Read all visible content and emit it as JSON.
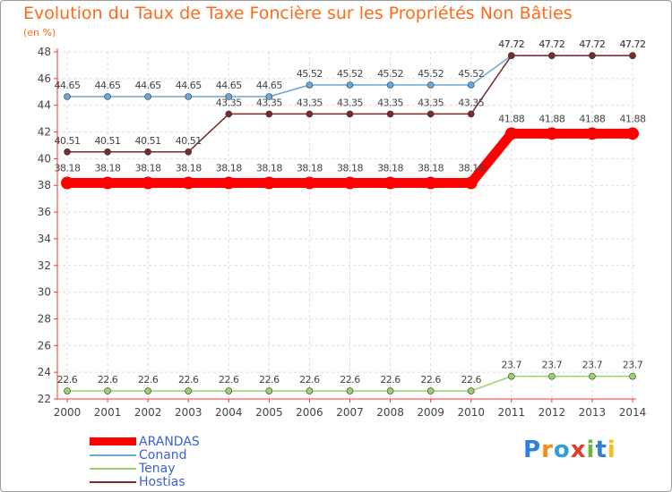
{
  "chart_data": {
    "type": "line",
    "title": "Evolution du Taux de Taxe Foncière sur les Propriétés Non Bâties",
    "ylabel": "(en %)",
    "xlabel": "",
    "ylim": [
      22,
      48
    ],
    "yticks": [
      22,
      24,
      26,
      28,
      30,
      32,
      34,
      36,
      38,
      40,
      42,
      44,
      46,
      48
    ],
    "categories": [
      "2000",
      "2001",
      "2002",
      "2003",
      "2004",
      "2005",
      "2006",
      "2007",
      "2008",
      "2009",
      "2010",
      "2011",
      "2012",
      "2013",
      "2014"
    ],
    "series": [
      {
        "name": "ARANDAS",
        "color": "#ff0000",
        "values": [
          38.18,
          38.18,
          38.18,
          38.18,
          38.18,
          38.18,
          38.18,
          38.18,
          38.18,
          38.18,
          38.18,
          41.88,
          41.88,
          41.88,
          41.88
        ],
        "labels": [
          "38.18",
          "38.18",
          "38.18",
          "38.18",
          "38.18",
          "38.18",
          "38.18",
          "38.18",
          "38.18",
          "38.18",
          "38.18",
          "41.88",
          "41.88",
          "41.88",
          "41.88"
        ]
      },
      {
        "name": "Conand",
        "color": "#6aa6d6",
        "values": [
          44.65,
          44.65,
          44.65,
          44.65,
          44.65,
          44.65,
          45.52,
          45.52,
          45.52,
          45.52,
          45.52,
          47.72,
          47.72,
          47.72,
          47.72
        ],
        "labels": [
          "44.65",
          "44.65",
          "44.65",
          "44.65",
          "44.65",
          "44.65",
          "45.52",
          "45.52",
          "45.52",
          "45.52",
          "45.52",
          "47.72",
          "47.72",
          "47.72",
          "47.72"
        ]
      },
      {
        "name": "Tenay",
        "color": "#99d26a",
        "values": [
          22.6,
          22.6,
          22.6,
          22.6,
          22.6,
          22.6,
          22.6,
          22.6,
          22.6,
          22.6,
          22.6,
          23.7,
          23.7,
          23.7,
          23.7
        ],
        "labels": [
          "22.6",
          "22.6",
          "22.6",
          "22.6",
          "22.6",
          "22.6",
          "22.6",
          "22.6",
          "22.6",
          "22.6",
          "22.6",
          "23.7",
          "23.7",
          "23.7",
          "23.7"
        ]
      },
      {
        "name": "Hostias",
        "color": "#7a2a2a",
        "values": [
          40.51,
          40.51,
          40.51,
          40.51,
          43.35,
          43.35,
          43.35,
          43.35,
          43.35,
          43.35,
          43.35,
          47.72,
          47.72,
          47.72,
          47.72
        ],
        "labels": [
          "40.51",
          "40.51",
          "40.51",
          "40.51",
          "43.35",
          "43.35",
          "43.35",
          "43.35",
          "43.35",
          "43.35",
          "43.35",
          "47.72",
          "47.72",
          "47.72",
          "47.72"
        ]
      }
    ],
    "grid": true,
    "legend": "bottom-left"
  },
  "legend_items": [
    {
      "label": "ARANDAS",
      "color": "#ff0000"
    },
    {
      "label": "Conand",
      "color": "#6aa6d6"
    },
    {
      "label": "Tenay",
      "color": "#99d26a"
    },
    {
      "label": "Hostias",
      "color": "#7a2a2a"
    }
  ],
  "logo": {
    "text": "Proxiti",
    "letters": [
      "P",
      "r",
      "o",
      "x",
      "i",
      "t",
      "i"
    ],
    "colors": [
      "#2f7fd6",
      "#f28b1e",
      "#2f9fd6",
      "#e23b2e",
      "#67b83c",
      "#2f7fd6",
      "#f2c21e"
    ]
  }
}
